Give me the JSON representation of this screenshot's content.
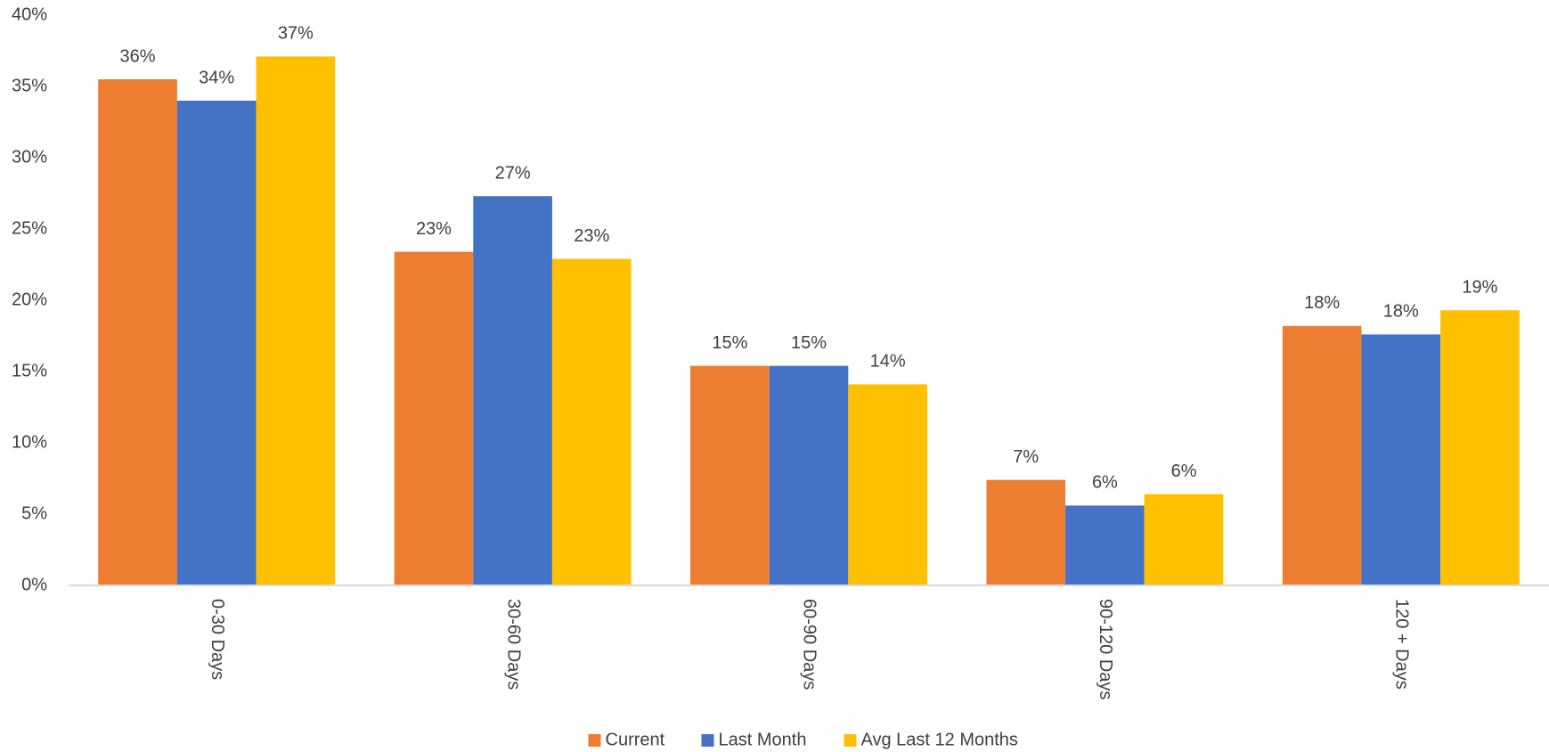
{
  "chart_data": {
    "type": "bar",
    "categories": [
      "0-30 Days",
      "30-60 Days",
      "60-90 Days",
      "90-120 Days",
      "120 + Days"
    ],
    "series": [
      {
        "name": "Current",
        "color": "#ed7d31",
        "values": [
          35.5,
          23.4,
          15.4,
          7.4,
          18.2
        ],
        "value_labels": [
          "36%",
          "23%",
          "15%",
          "7%",
          "18%"
        ]
      },
      {
        "name": "Last Month",
        "color": "#4472c4",
        "values": [
          34.0,
          27.3,
          15.4,
          5.6,
          17.6
        ],
        "value_labels": [
          "34%",
          "27%",
          "15%",
          "6%",
          "18%"
        ]
      },
      {
        "name": "Avg Last 12 Months",
        "color": "#ffc000",
        "values": [
          37.1,
          22.9,
          14.1,
          6.4,
          19.3
        ],
        "value_labels": [
          "37%",
          "23%",
          "14%",
          "6%",
          "19%"
        ]
      }
    ],
    "ylim": [
      0,
      40
    ],
    "yticks": [
      {
        "value": 0,
        "label": "0%"
      },
      {
        "value": 5,
        "label": "5%"
      },
      {
        "value": 10,
        "label": "10%"
      },
      {
        "value": 15,
        "label": "15%"
      },
      {
        "value": 20,
        "label": "20%"
      },
      {
        "value": 25,
        "label": "25%"
      },
      {
        "value": 30,
        "label": "30%"
      },
      {
        "value": 35,
        "label": "35%"
      },
      {
        "value": 40,
        "label": "40%"
      }
    ],
    "grid": false,
    "legend": "bottom"
  }
}
